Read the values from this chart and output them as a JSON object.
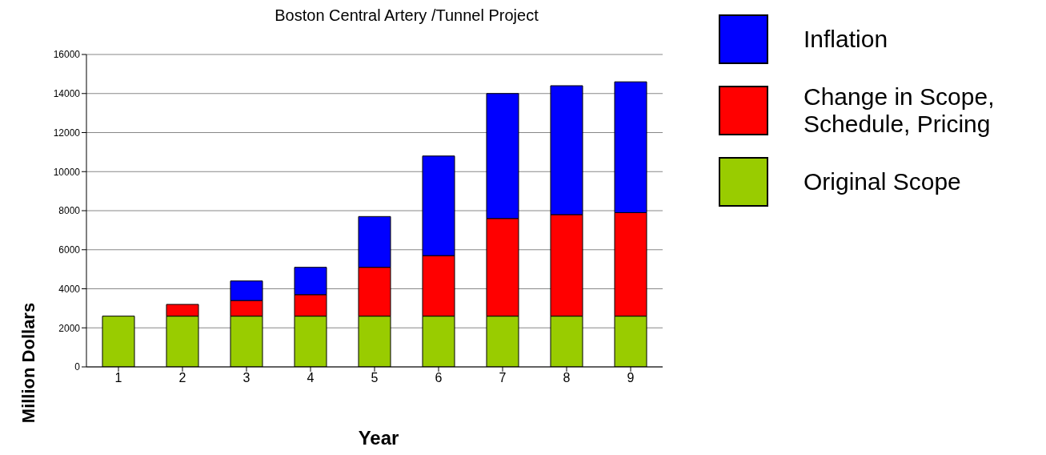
{
  "chart_data": {
    "type": "bar",
    "title": "Boston Central Artery /Tunnel Project",
    "xlabel": "Year",
    "ylabel": "Million Dollars",
    "categories": [
      "1",
      "2",
      "3",
      "4",
      "5",
      "6",
      "7",
      "8",
      "9"
    ],
    "stacked": true,
    "series": [
      {
        "name": "Original Scope",
        "color": "#99cc00",
        "values": [
          2600,
          2600,
          2600,
          2600,
          2600,
          2600,
          2600,
          2600,
          2600
        ]
      },
      {
        "name": "Change in Scope, Schedule, Pricing",
        "color": "#ff0000",
        "values": [
          null,
          600,
          800,
          1100,
          2500,
          3100,
          5000,
          5200,
          5300
        ]
      },
      {
        "name": "Inflation",
        "color": "#0000ff",
        "values": [
          null,
          null,
          1000,
          1400,
          2600,
          5100,
          6400,
          6600,
          6700
        ]
      }
    ],
    "ylim": [
      0,
      16000
    ],
    "yticks": [
      0,
      2000,
      4000,
      6000,
      8000,
      10000,
      12000,
      14000,
      16000
    ],
    "grid": "y",
    "legend": "top right"
  }
}
